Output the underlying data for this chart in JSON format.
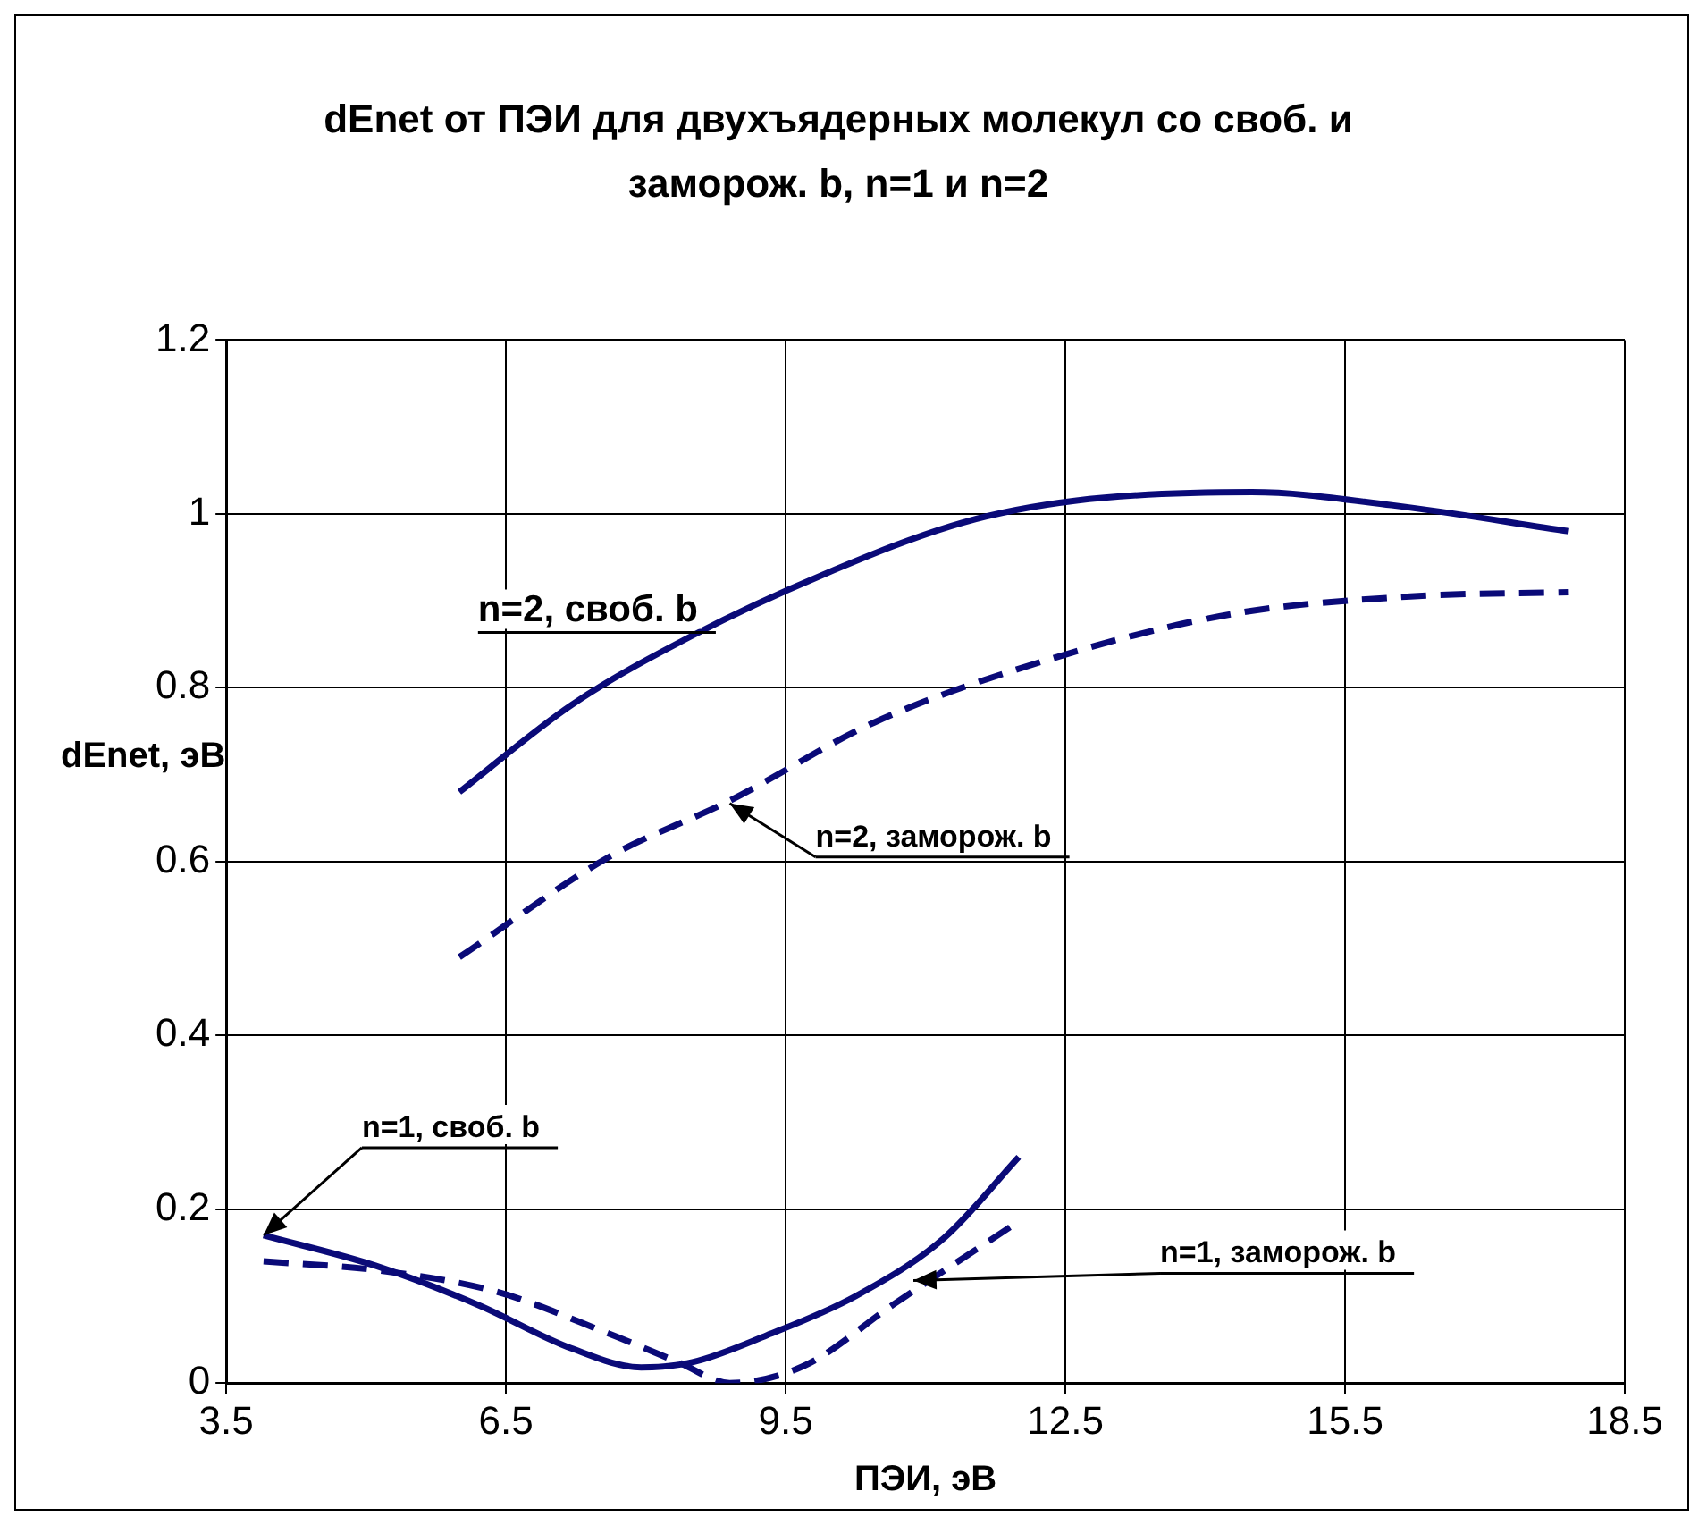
{
  "chart_data": {
    "type": "line",
    "title": "dEnet от ПЭИ для двухъядерных молекул со своб. и заморож. b, n=1 и n=2",
    "xlabel": "ПЭИ, эВ",
    "ylabel": "dEnet, эВ",
    "xlim": [
      3.5,
      18.5
    ],
    "xticks": [
      3.5,
      6.5,
      9.5,
      12.5,
      15.5,
      18.5
    ],
    "ylim": [
      0,
      1.2
    ],
    "yticks": [
      0,
      0.2,
      0.4,
      0.6,
      0.8,
      1,
      1.2
    ],
    "grid": true,
    "legend": false,
    "marker": "none",
    "series": [
      {
        "color": "#0a0a78",
        "line_style": "solid",
        "x": [
          6.0,
          7.2,
          8.5,
          9.9,
          11.4,
          12.6,
          14.5,
          16.0,
          17.9
        ],
        "values": [
          0.68,
          0.78,
          0.86,
          0.93,
          0.99,
          1.015,
          1.025,
          1.01,
          0.98
        ]
      },
      {
        "color": "#0a0a78",
        "line_style": "dashed",
        "x": [
          6.0,
          7.6,
          8.9,
          10.45,
          12.4,
          14.3,
          16.2,
          17.9
        ],
        "values": [
          0.49,
          0.605,
          0.67,
          0.76,
          0.835,
          0.885,
          0.905,
          0.91
        ]
      },
      {
        "color": "#0a0a78",
        "line_style": "solid",
        "x": [
          3.9,
          5.1,
          6.2,
          7.2,
          7.95,
          8.5,
          9.3,
          10.25,
          11.2,
          12.0
        ],
        "values": [
          0.17,
          0.135,
          0.09,
          0.04,
          0.018,
          0.024,
          0.055,
          0.1,
          0.167,
          0.26
        ]
      },
      {
        "color": "#0a0a78",
        "line_style": "dashed",
        "x": [
          3.9,
          5.1,
          6.4,
          7.6,
          8.35,
          8.9,
          9.7,
          10.65,
          12.0
        ],
        "values": [
          0.14,
          0.13,
          0.105,
          0.057,
          0.024,
          0.0,
          0.02,
          0.09,
          0.186
        ]
      }
    ],
    "annotations": [
      "n=2, своб. b",
      {
        "text": "n=2, заморож. b",
        "x": 8.9,
        "y": 0.667
      },
      {
        "text": "n=1, своб. b",
        "x": 3.9,
        "y": 0.17
      },
      {
        "text": "n=1, заморож. b",
        "x": 10.87,
        "y": 0.118
      }
    ]
  }
}
